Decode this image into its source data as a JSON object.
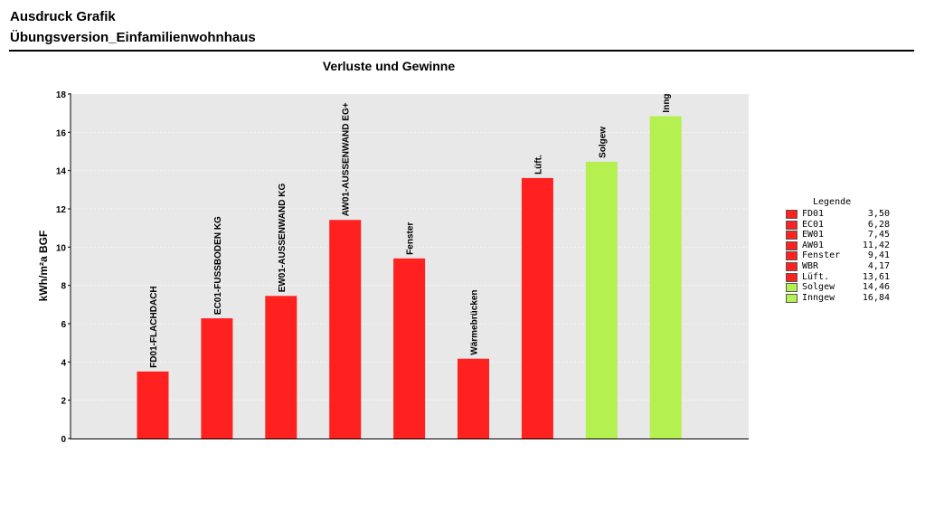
{
  "header": {
    "title": "Ausdruck Grafik",
    "subtitle": "Übungsversion_Einfamilienwohnhaus"
  },
  "colors": {
    "loss": "#ff2020",
    "gain": "#b4f050",
    "plot_bg": "#e8e8e8"
  },
  "chart_data": {
    "type": "bar",
    "title": "Verluste und Gewinne",
    "ylabel": "kWh/m²a BGF",
    "xlabel": "",
    "ylim": [
      0,
      18
    ],
    "yticks": [
      "0",
      "2",
      "4",
      "6",
      "8",
      "10",
      "12",
      "14",
      "16",
      "18"
    ],
    "grid": true,
    "legend_position": "right",
    "categories": [
      "FD01-FLACHDACH",
      "EC01-FUSSBODEN KG",
      "EW01-AUSSENWAND KG",
      "AW01-AUSSENWAND EG+",
      "Fenster",
      "Wärmebrücken",
      "Lüft.",
      "Solgew",
      "Inngew"
    ],
    "values": [
      3.5,
      6.28,
      7.45,
      11.42,
      9.41,
      4.17,
      13.61,
      14.46,
      16.84
    ],
    "bar_types": [
      "loss",
      "loss",
      "loss",
      "loss",
      "loss",
      "loss",
      "loss",
      "gain",
      "gain"
    ],
    "legend": {
      "title": "Legende",
      "items": [
        {
          "name": "FD01",
          "value": "3,50"
        },
        {
          "name": "EC01",
          "value": "6,28"
        },
        {
          "name": "EW01",
          "value": "7,45"
        },
        {
          "name": "AW01",
          "value": "11,42"
        },
        {
          "name": "Fenster",
          "value": "9,41"
        },
        {
          "name": "WBR",
          "value": "4,17"
        },
        {
          "name": "Lüft.",
          "value": "13,61"
        },
        {
          "name": "Solgew",
          "value": "14,46"
        },
        {
          "name": "Inngew",
          "value": "16,84"
        }
      ]
    }
  }
}
